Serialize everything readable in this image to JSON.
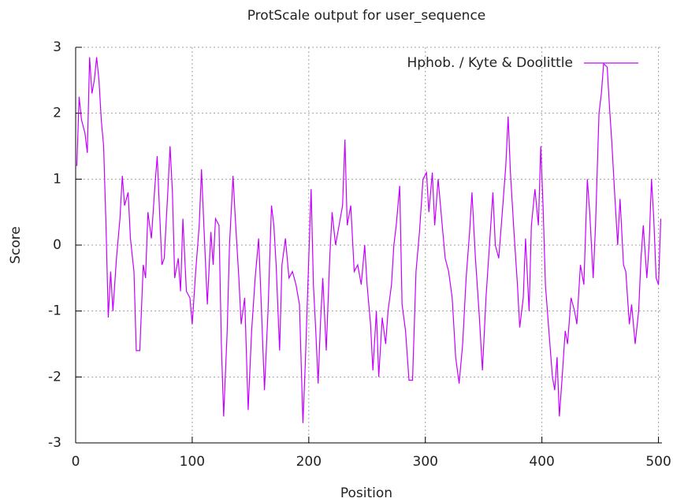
{
  "chart_data": {
    "type": "line",
    "title": "ProtScale output for user_sequence",
    "x_label": "Position",
    "y_label": "Score",
    "xlim": [
      0,
      503
    ],
    "ylim": [
      -3,
      3
    ],
    "xticks": [
      0,
      100,
      200,
      300,
      400,
      500
    ],
    "yticks": [
      -3,
      -2,
      -1,
      0,
      1,
      2,
      3
    ],
    "grid": true,
    "legend": "top-right",
    "x": [
      1,
      3,
      5,
      8,
      10,
      12,
      14,
      16,
      18,
      20,
      22,
      24,
      26,
      28,
      30,
      32,
      35,
      38,
      40,
      42,
      45,
      47,
      50,
      52,
      55,
      58,
      60,
      62,
      65,
      68,
      70,
      72,
      74,
      76,
      79,
      81,
      83,
      85,
      88,
      90,
      92,
      95,
      98,
      100,
      103,
      106,
      108,
      110,
      113,
      116,
      118,
      120,
      123,
      125,
      127,
      130,
      132,
      135,
      137,
      140,
      142,
      145,
      148,
      151,
      154,
      157,
      159,
      162,
      165,
      168,
      170,
      172,
      175,
      177,
      180,
      183,
      186,
      189,
      192,
      195,
      197,
      200,
      202,
      204,
      206,
      208,
      210,
      212,
      215,
      218,
      220,
      223,
      226,
      229,
      231,
      233,
      236,
      239,
      242,
      245,
      248,
      250,
      253,
      255,
      258,
      260,
      263,
      266,
      268,
      271,
      273,
      275,
      278,
      280,
      283,
      286,
      289,
      292,
      295,
      298,
      301,
      303,
      306,
      308,
      311,
      314,
      317,
      320,
      323,
      326,
      329,
      332,
      335,
      338,
      340,
      343,
      346,
      349,
      352,
      355,
      358,
      360,
      363,
      366,
      369,
      371,
      373,
      376,
      379,
      381,
      384,
      386,
      389,
      391,
      394,
      397,
      399,
      401,
      403,
      406,
      409,
      411,
      413,
      415,
      417,
      420,
      422,
      425,
      428,
      430,
      433,
      436,
      439,
      441,
      444,
      446,
      449,
      451,
      453,
      456,
      458,
      460,
      462,
      465,
      467,
      470,
      472,
      475,
      477,
      480,
      483,
      485,
      487,
      490,
      492,
      494,
      496,
      498,
      500,
      502
    ],
    "series": [
      {
        "name": "Hphob. / Kyte & Doolittle",
        "color": "#c400ff",
        "values": [
          1.2,
          2.25,
          1.9,
          1.7,
          1.4,
          2.85,
          2.3,
          2.5,
          2.85,
          2.5,
          1.9,
          1.5,
          0.3,
          -1.1,
          -0.4,
          -1.0,
          -0.2,
          0.4,
          1.05,
          0.6,
          0.8,
          0.1,
          -0.4,
          -1.6,
          -1.6,
          -0.3,
          -0.5,
          0.5,
          0.1,
          0.9,
          1.35,
          0.5,
          -0.3,
          -0.2,
          0.8,
          1.5,
          0.8,
          -0.5,
          -0.2,
          -0.7,
          0.4,
          -0.7,
          -0.8,
          -1.2,
          -0.4,
          0.3,
          1.15,
          0.3,
          -0.9,
          0.2,
          -0.3,
          0.4,
          0.3,
          -1.5,
          -2.6,
          -1.3,
          0.0,
          1.05,
          0.4,
          -0.5,
          -1.2,
          -0.8,
          -2.5,
          -1.3,
          -0.5,
          0.1,
          -0.8,
          -2.2,
          -1.0,
          0.6,
          0.3,
          -0.3,
          -1.6,
          -0.3,
          0.1,
          -0.5,
          -0.4,
          -0.6,
          -0.9,
          -2.7,
          -1.8,
          -0.2,
          0.85,
          -0.6,
          -1.3,
          -2.1,
          -1.2,
          -0.5,
          -1.6,
          -0.2,
          0.5,
          0.0,
          0.3,
          0.6,
          1.6,
          0.3,
          0.6,
          -0.4,
          -0.3,
          -0.6,
          0.0,
          -0.6,
          -1.2,
          -1.9,
          -1.0,
          -2.0,
          -1.1,
          -1.5,
          -1.0,
          -0.6,
          0.0,
          0.3,
          0.9,
          -0.9,
          -1.3,
          -2.05,
          -2.05,
          -0.4,
          0.2,
          1.0,
          1.1,
          0.5,
          1.1,
          0.3,
          1.0,
          0.4,
          -0.2,
          -0.4,
          -0.8,
          -1.7,
          -2.1,
          -1.5,
          -0.5,
          0.2,
          0.8,
          -0.2,
          -1.0,
          -1.9,
          -0.8,
          0.0,
          0.8,
          0.0,
          -0.2,
          0.5,
          1.2,
          1.95,
          1.1,
          0.2,
          -0.6,
          -1.25,
          -0.8,
          0.1,
          -1.0,
          0.3,
          0.85,
          0.3,
          1.5,
          0.6,
          -0.6,
          -1.3,
          -2.0,
          -2.2,
          -1.7,
          -2.6,
          -2.1,
          -1.3,
          -1.5,
          -0.8,
          -1.0,
          -1.2,
          -0.3,
          -0.6,
          1.0,
          0.5,
          -0.5,
          0.3,
          2.0,
          2.3,
          2.75,
          2.7,
          2.1,
          1.55,
          0.9,
          0.0,
          0.7,
          -0.3,
          -0.4,
          -1.2,
          -0.9,
          -1.5,
          -1.0,
          -0.2,
          0.3,
          -0.5,
          0.0,
          1.0,
          0.4,
          -0.5,
          -0.6,
          0.4
        ]
      }
    ]
  }
}
